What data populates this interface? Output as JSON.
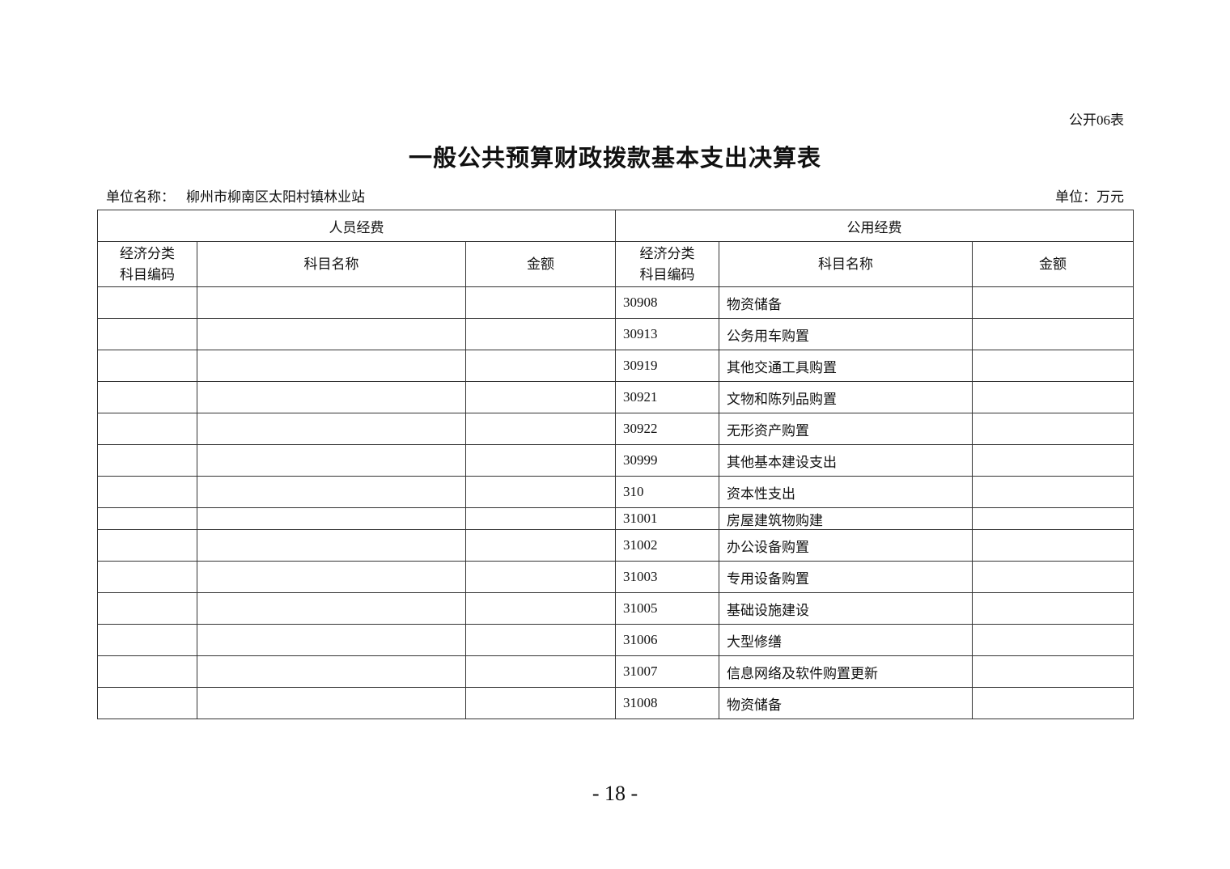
{
  "form_no": "公开06表",
  "title": "一般公共预算财政拨款基本支出决算表",
  "unit_name_label": "单位名称：",
  "unit_name": "柳州市柳南区太阳村镇林业站",
  "unit": "单位：万元",
  "table": {
    "group_headers": [
      "人员经费",
      "公用经费"
    ],
    "column_headers": {
      "code_line1": "经济分类",
      "code_line2": "科目编码",
      "name": "科目名称",
      "amount": "金额"
    },
    "rows": [
      {
        "code": "30908",
        "name": "物资储备",
        "amount": ""
      },
      {
        "code": "30913",
        "name": "公务用车购置",
        "amount": ""
      },
      {
        "code": "30919",
        "name": "其他交通工具购置",
        "amount": ""
      },
      {
        "code": "30921",
        "name": "文物和陈列品购置",
        "amount": ""
      },
      {
        "code": "30922",
        "name": "无形资产购置",
        "amount": ""
      },
      {
        "code": "30999",
        "name": "其他基本建设支出",
        "amount": ""
      },
      {
        "code": "310",
        "name": "资本性支出",
        "amount": ""
      },
      {
        "code": "31001",
        "name": "房屋建筑物购建",
        "amount": ""
      },
      {
        "code": "31002",
        "name": "办公设备购置",
        "amount": ""
      },
      {
        "code": "31003",
        "name": "专用设备购置",
        "amount": ""
      },
      {
        "code": "31005",
        "name": "基础设施建设",
        "amount": ""
      },
      {
        "code": "31006",
        "name": "大型修缮",
        "amount": ""
      },
      {
        "code": "31007",
        "name": "信息网络及软件购置更新",
        "amount": ""
      },
      {
        "code": "31008",
        "name": "物资储备",
        "amount": ""
      }
    ]
  },
  "page_number": "- 18 -"
}
